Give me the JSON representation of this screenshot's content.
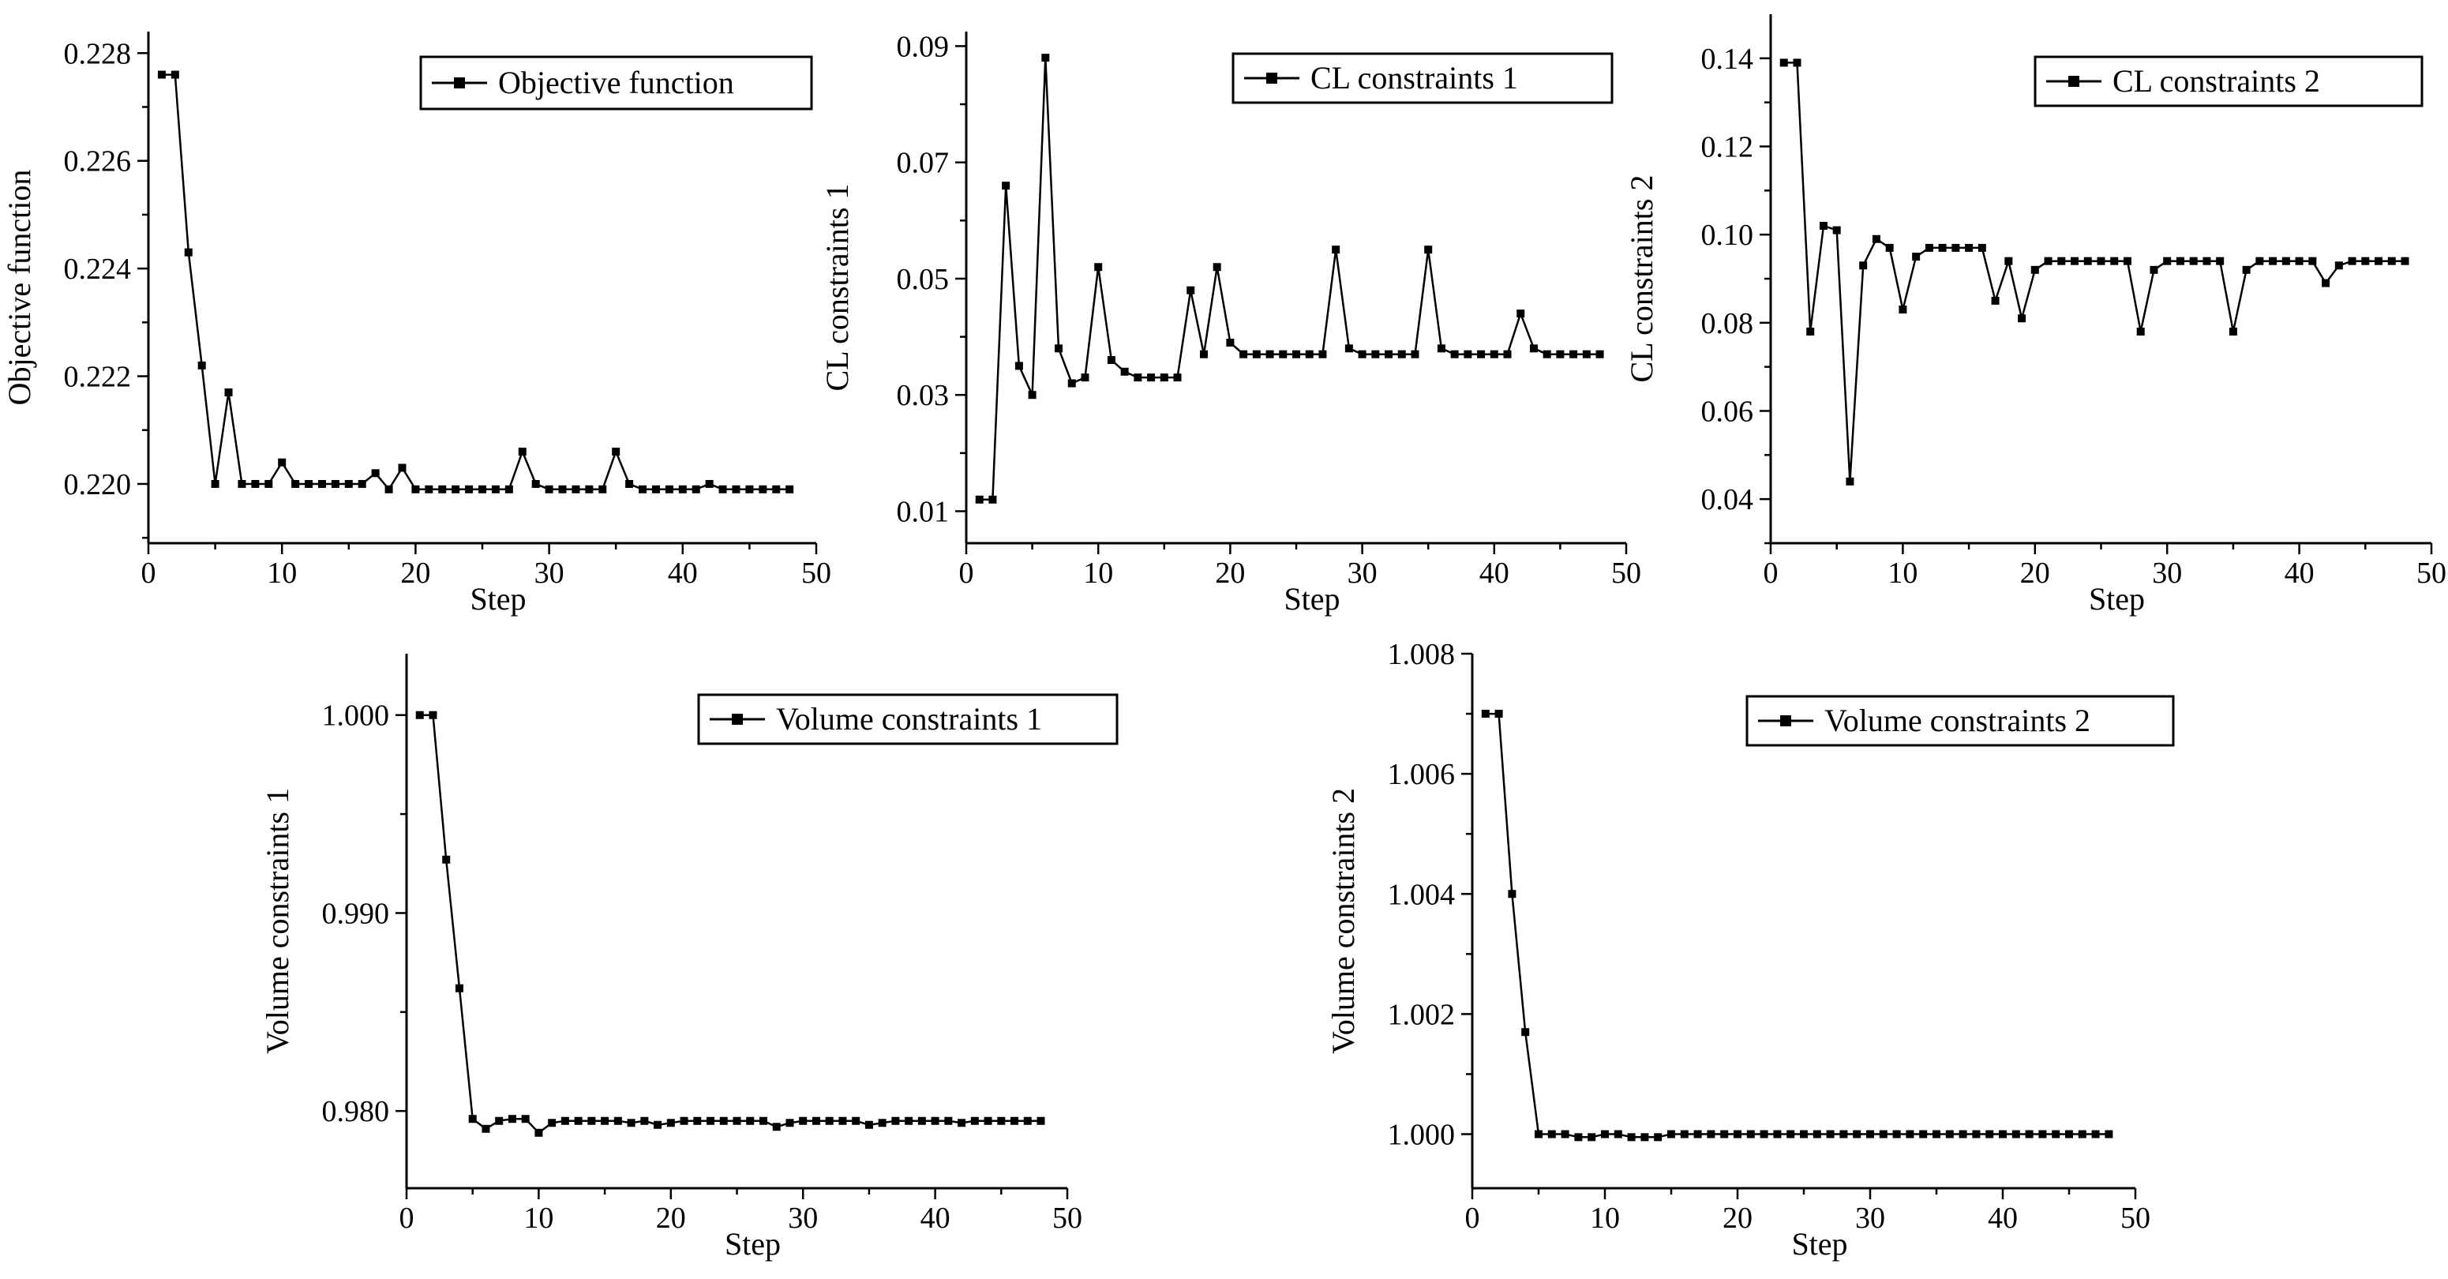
{
  "chart_data": [
    {
      "type": "line",
      "ylabel": "Objective function",
      "xlabel": "Step",
      "xlim": [
        0,
        50
      ],
      "ylim": [
        0.2189,
        0.2284
      ],
      "xticks": [
        "0",
        "10",
        "20",
        "30",
        "40",
        "50"
      ],
      "yticks": [
        {
          "value": 0.22,
          "label": "0.220"
        },
        {
          "value": 0.222,
          "label": "0.222"
        },
        {
          "value": 0.224,
          "label": "0.224"
        },
        {
          "value": 0.226,
          "label": "0.226"
        },
        {
          "value": 0.228,
          "label": "0.228"
        }
      ],
      "legend": "top-right",
      "series": [
        {
          "name": "Objective function",
          "x": [
            1,
            2,
            3,
            4,
            5,
            6,
            7,
            8,
            9,
            10,
            11,
            12,
            13,
            14,
            15,
            16,
            17,
            18,
            19,
            20,
            21,
            22,
            23,
            24,
            25,
            26,
            27,
            28,
            29,
            30,
            31,
            32,
            33,
            34,
            35,
            36,
            37,
            38,
            39,
            40,
            41,
            42,
            43,
            44,
            45,
            46,
            47,
            48
          ],
          "values": [
            0.2276,
            0.2276,
            0.2243,
            0.2222,
            0.22,
            0.2217,
            0.22,
            0.22,
            0.22,
            0.2204,
            0.22,
            0.22,
            0.22,
            0.22,
            0.22,
            0.22,
            0.2202,
            0.2199,
            0.2203,
            0.2199,
            0.2199,
            0.2199,
            0.2199,
            0.2199,
            0.2199,
            0.2199,
            0.2199,
            0.2206,
            0.22,
            0.2199,
            0.2199,
            0.2199,
            0.2199,
            0.2199,
            0.2206,
            0.22,
            0.2199,
            0.2199,
            0.2199,
            0.2199,
            0.2199,
            0.22,
            0.2199,
            0.2199,
            0.2199,
            0.2199,
            0.2199,
            0.2199
          ]
        }
      ]
    },
    {
      "type": "line",
      "ylabel": "CL constraints 1",
      "xlabel": "Step",
      "xlim": [
        0,
        50
      ],
      "ylim": [
        0.0045,
        0.0925
      ],
      "xticks": [
        "0",
        "10",
        "20",
        "30",
        "40",
        "50"
      ],
      "yticks": [
        {
          "value": 0.01,
          "label": "0.01"
        },
        {
          "value": 0.03,
          "label": "0.03"
        },
        {
          "value": 0.05,
          "label": "0.05"
        },
        {
          "value": 0.07,
          "label": "0.07"
        },
        {
          "value": 0.09,
          "label": "0.09"
        }
      ],
      "legend": "top-right",
      "series": [
        {
          "name": "CL constraints 1",
          "x": [
            1,
            2,
            3,
            4,
            5,
            6,
            7,
            8,
            9,
            10,
            11,
            12,
            13,
            14,
            15,
            16,
            17,
            18,
            19,
            20,
            21,
            22,
            23,
            24,
            25,
            26,
            27,
            28,
            29,
            30,
            31,
            32,
            33,
            34,
            35,
            36,
            37,
            38,
            39,
            40,
            41,
            42,
            43,
            44,
            45,
            46,
            47,
            48
          ],
          "values": [
            0.012,
            0.012,
            0.066,
            0.035,
            0.03,
            0.088,
            0.038,
            0.032,
            0.033,
            0.052,
            0.036,
            0.034,
            0.033,
            0.033,
            0.033,
            0.033,
            0.048,
            0.037,
            0.052,
            0.039,
            0.037,
            0.037,
            0.037,
            0.037,
            0.037,
            0.037,
            0.037,
            0.055,
            0.038,
            0.037,
            0.037,
            0.037,
            0.037,
            0.037,
            0.055,
            0.038,
            0.037,
            0.037,
            0.037,
            0.037,
            0.037,
            0.044,
            0.038,
            0.037,
            0.037,
            0.037,
            0.037,
            0.037
          ]
        }
      ]
    },
    {
      "type": "line",
      "ylabel": "CL constraints 2",
      "xlabel": "Step",
      "xlim": [
        0,
        50
      ],
      "ylim": [
        0.03,
        0.15
      ],
      "xticks": [
        "0",
        "10",
        "20",
        "30",
        "40",
        "50"
      ],
      "yticks": [
        {
          "value": 0.04,
          "label": "0.04"
        },
        {
          "value": 0.06,
          "label": "0.06"
        },
        {
          "value": 0.08,
          "label": "0.08"
        },
        {
          "value": 0.1,
          "label": "0.10"
        },
        {
          "value": 0.12,
          "label": "0.12"
        },
        {
          "value": 0.14,
          "label": "0.14"
        }
      ],
      "legend": "top-right",
      "series": [
        {
          "name": "CL constraints 2",
          "x": [
            1,
            2,
            3,
            4,
            5,
            6,
            7,
            8,
            9,
            10,
            11,
            12,
            13,
            14,
            15,
            16,
            17,
            18,
            19,
            20,
            21,
            22,
            23,
            24,
            25,
            26,
            27,
            28,
            29,
            30,
            31,
            32,
            33,
            34,
            35,
            36,
            37,
            38,
            39,
            40,
            41,
            42,
            43,
            44,
            45,
            46,
            47,
            48
          ],
          "values": [
            0.139,
            0.139,
            0.078,
            0.102,
            0.101,
            0.044,
            0.093,
            0.099,
            0.097,
            0.083,
            0.095,
            0.097,
            0.097,
            0.097,
            0.097,
            0.097,
            0.085,
            0.094,
            0.081,
            0.092,
            0.094,
            0.094,
            0.094,
            0.094,
            0.094,
            0.094,
            0.094,
            0.078,
            0.092,
            0.094,
            0.094,
            0.094,
            0.094,
            0.094,
            0.078,
            0.092,
            0.094,
            0.094,
            0.094,
            0.094,
            0.094,
            0.089,
            0.093,
            0.094,
            0.094,
            0.094,
            0.094,
            0.094
          ]
        }
      ]
    },
    {
      "type": "line",
      "ylabel": "Volume constraints 1",
      "xlabel": "Step",
      "xlim": [
        0,
        50
      ],
      "ylim": [
        0.9761,
        1.0031
      ],
      "xticks": [
        "0",
        "10",
        "20",
        "30",
        "40",
        "50"
      ],
      "yticks": [
        {
          "value": 0.98,
          "label": "0.980"
        },
        {
          "value": 0.99,
          "label": "0.990"
        },
        {
          "value": 1.0,
          "label": "1.000"
        }
      ],
      "legend": "top-right",
      "series": [
        {
          "name": "Volume constraints 1",
          "x": [
            1,
            2,
            3,
            4,
            5,
            6,
            7,
            8,
            9,
            10,
            11,
            12,
            13,
            14,
            15,
            16,
            17,
            18,
            19,
            20,
            21,
            22,
            23,
            24,
            25,
            26,
            27,
            28,
            29,
            30,
            31,
            32,
            33,
            34,
            35,
            36,
            37,
            38,
            39,
            40,
            41,
            42,
            43,
            44,
            45,
            46,
            47,
            48
          ],
          "values": [
            1.0,
            1.0,
            0.9927,
            0.9862,
            0.9796,
            0.9791,
            0.9795,
            0.9796,
            0.9796,
            0.9789,
            0.9794,
            0.9795,
            0.9795,
            0.9795,
            0.9795,
            0.9795,
            0.9794,
            0.9795,
            0.9793,
            0.9794,
            0.9795,
            0.9795,
            0.9795,
            0.9795,
            0.9795,
            0.9795,
            0.9795,
            0.9792,
            0.9794,
            0.9795,
            0.9795,
            0.9795,
            0.9795,
            0.9795,
            0.9793,
            0.9794,
            0.9795,
            0.9795,
            0.9795,
            0.9795,
            0.9795,
            0.9794,
            0.9795,
            0.9795,
            0.9795,
            0.9795,
            0.9795,
            0.9795
          ]
        }
      ]
    },
    {
      "type": "line",
      "ylabel": "Volume constraints 2",
      "xlabel": "Step",
      "xlim": [
        0,
        50
      ],
      "ylim": [
        0.9991,
        1.008
      ],
      "xticks": [
        "0",
        "10",
        "20",
        "30",
        "40",
        "50"
      ],
      "yticks": [
        {
          "value": 1.0,
          "label": "1.000"
        },
        {
          "value": 1.002,
          "label": "1.002"
        },
        {
          "value": 1.004,
          "label": "1.004"
        },
        {
          "value": 1.006,
          "label": "1.006"
        },
        {
          "value": 1.008,
          "label": "1.008"
        }
      ],
      "legend": "top-right",
      "series": [
        {
          "name": "Volume constraints 2",
          "x": [
            1,
            2,
            3,
            4,
            5,
            6,
            7,
            8,
            9,
            10,
            11,
            12,
            13,
            14,
            15,
            16,
            17,
            18,
            19,
            20,
            21,
            22,
            23,
            24,
            25,
            26,
            27,
            28,
            29,
            30,
            31,
            32,
            33,
            34,
            35,
            36,
            37,
            38,
            39,
            40,
            41,
            42,
            43,
            44,
            45,
            46,
            47,
            48
          ],
          "values": [
            1.007,
            1.007,
            1.004,
            1.0017,
            1.0,
            1.0,
            1.0,
            0.99995,
            0.99995,
            1.0,
            1.0,
            0.99995,
            0.99995,
            0.99995,
            1.0,
            1.0,
            1.0,
            1.0,
            1.0,
            1.0,
            1.0,
            1.0,
            1.0,
            1.0,
            1.0,
            1.0,
            1.0,
            1.0,
            1.0,
            1.0,
            1.0,
            1.0,
            1.0,
            1.0,
            1.0,
            1.0,
            1.0,
            1.0,
            1.0,
            1.0,
            1.0,
            1.0,
            1.0,
            1.0,
            1.0,
            1.0,
            1.0,
            1.0
          ]
        }
      ]
    }
  ]
}
